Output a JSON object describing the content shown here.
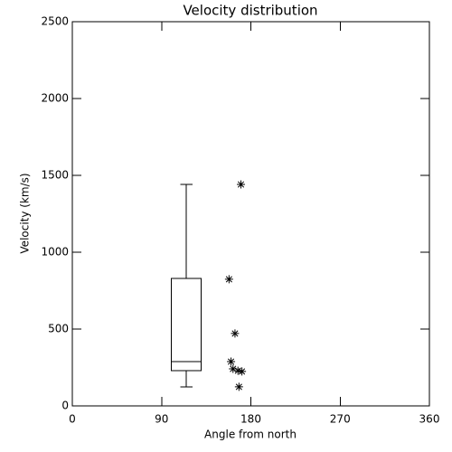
{
  "chart_data": {
    "type": "box-scatter",
    "title": "Velocity distribution",
    "x_label": "Angle from north",
    "y_label": "Velocity (km/s)",
    "xlim": [
      0,
      360
    ],
    "xticks": [
      0,
      90,
      180,
      270,
      360
    ],
    "ylim": [
      0,
      2500
    ],
    "yticks": [
      0,
      500,
      1000,
      1500,
      2000,
      2500
    ],
    "color": "#000000",
    "box": {
      "x": [
        100,
        130
      ],
      "whisker_low": 124,
      "q1": 229,
      "median": 288,
      "q3": 829,
      "whisker_high": 1441
    },
    "x": [
      170,
      158,
      164,
      160,
      162,
      167,
      171,
      168
    ],
    "values": [
      1441,
      824,
      471,
      288,
      241,
      229,
      224,
      124
    ]
  }
}
